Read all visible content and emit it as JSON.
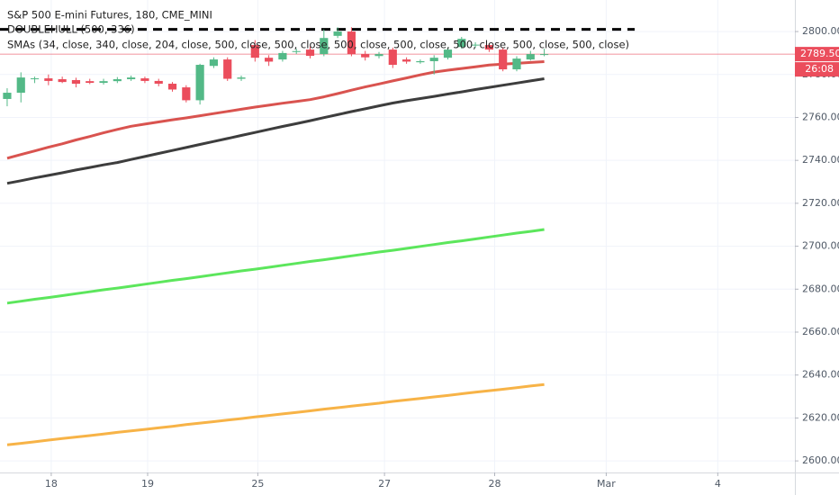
{
  "chart_data": {
    "type": "candlestick",
    "title": "S&P 500 E-mini Futures, 180, CME_MINI",
    "indicator_labels": [
      "DOUBLEHULL (500, 336)",
      "SMAs (34, close, 340, close, 204, close, 500, close, 500, close, 500, close, 500, close, 500, close, 500, close, 500, close)"
    ],
    "open": [
      2768.6,
      2771.5,
      2777.8,
      2778.2,
      2777.8,
      2777.4,
      2776.9,
      2776.1,
      2776.9,
      2777.8,
      2778.2,
      2777.0,
      2775.7,
      2774.0,
      2768.0,
      2784.0,
      2787.0,
      2778.0,
      2793.7,
      2787.8,
      2787.0,
      2790.6,
      2791.6,
      2789.5,
      2798.0,
      2800.0,
      2789.5,
      2788.6,
      2791.6,
      2787.0,
      2785.7,
      2786.2,
      2787.8,
      2792.8,
      2793.5,
      2793.7,
      2791.6,
      2782.4,
      2787.0,
      2789.4
    ],
    "high": [
      2773.6,
      2781.0,
      2779.0,
      2780.0,
      2779.0,
      2778.5,
      2778.0,
      2778.0,
      2778.8,
      2779.5,
      2779.0,
      2778.0,
      2776.5,
      2775.0,
      2785.0,
      2788.0,
      2788.0,
      2779.5,
      2796.0,
      2789.0,
      2791.0,
      2792.0,
      2793.0,
      2801.0,
      2802.0,
      2802.0,
      2791.0,
      2790.5,
      2792.5,
      2788.0,
      2787.0,
      2789.0,
      2792.5,
      2797.5,
      2795.0,
      2794.5,
      2792.5,
      2788.5,
      2791.0,
      2792.0
    ],
    "low": [
      2765.2,
      2767.0,
      2776.0,
      2775.0,
      2776.0,
      2774.0,
      2775.5,
      2775.3,
      2776.0,
      2777.0,
      2776.0,
      2774.5,
      2772.0,
      2767.0,
      2766.0,
      2783.0,
      2777.0,
      2777.0,
      2786.0,
      2784.0,
      2786.0,
      2789.5,
      2787.5,
      2788.5,
      2797.0,
      2788.5,
      2786.5,
      2787.5,
      2783.0,
      2785.0,
      2785.0,
      2780.0,
      2787.0,
      2792.0,
      2792.5,
      2790.5,
      2781.5,
      2781.5,
      2786.5,
      2788.5
    ],
    "close": [
      2771.5,
      2778.6,
      2778.2,
      2777.0,
      2776.5,
      2775.7,
      2776.1,
      2776.9,
      2777.8,
      2778.6,
      2777.0,
      2775.7,
      2773.0,
      2768.0,
      2784.5,
      2787.0,
      2778.0,
      2778.6,
      2787.8,
      2786.0,
      2790.0,
      2790.9,
      2788.7,
      2797.0,
      2800.0,
      2789.5,
      2788.0,
      2789.5,
      2784.5,
      2786.0,
      2786.2,
      2787.8,
      2791.6,
      2796.6,
      2793.9,
      2791.6,
      2782.4,
      2787.4,
      2789.5,
      2789.5
    ],
    "up_color": "#53b987",
    "down_color": "#eb4d5c",
    "lines": [
      {
        "color": "#d9534f",
        "values": [
          2741.0,
          2742.7,
          2744.4,
          2746.1,
          2747.7,
          2749.5,
          2751.1,
          2752.8,
          2754.4,
          2755.9,
          2756.9,
          2757.9,
          2758.9,
          2759.8,
          2760.8,
          2761.8,
          2762.8,
          2763.8,
          2764.8,
          2765.7,
          2766.6,
          2767.4,
          2768.3,
          2769.6,
          2771.1,
          2772.7,
          2774.2,
          2775.6,
          2777.0,
          2778.4,
          2779.8,
          2781.1,
          2782.0,
          2782.8,
          2783.6,
          2784.4,
          2784.8,
          2785.2,
          2785.6,
          2786.0
        ]
      },
      {
        "color": "#3d3d3d",
        "values": [
          2729.3,
          2730.5,
          2731.8,
          2733.0,
          2734.2,
          2735.5,
          2736.7,
          2737.9,
          2739.0,
          2740.4,
          2741.8,
          2743.2,
          2744.6,
          2746.0,
          2747.4,
          2748.8,
          2750.2,
          2751.6,
          2753.0,
          2754.4,
          2755.8,
          2757.1,
          2758.5,
          2759.9,
          2761.3,
          2762.7,
          2764.0,
          2765.4,
          2766.7,
          2767.8,
          2768.8,
          2769.8,
          2770.9,
          2771.9,
          2773.0,
          2774.0,
          2775.0,
          2776.0,
          2777.0,
          2778.0
        ]
      },
      {
        "color": "#5ce65c",
        "values": [
          2673.5,
          2674.4,
          2675.3,
          2676.1,
          2677.0,
          2677.9,
          2678.8,
          2679.7,
          2680.5,
          2681.4,
          2682.3,
          2683.2,
          2684.1,
          2684.9,
          2685.8,
          2686.7,
          2687.6,
          2688.5,
          2689.3,
          2690.2,
          2691.1,
          2692.0,
          2692.9,
          2693.7,
          2694.6,
          2695.5,
          2696.4,
          2697.3,
          2698.1,
          2699.0,
          2699.9,
          2700.8,
          2701.7,
          2702.5,
          2703.4,
          2704.3,
          2705.2,
          2706.1,
          2706.9,
          2707.8
        ]
      },
      {
        "color": "#f7b347",
        "values": [
          2607.5,
          2608.2,
          2608.9,
          2609.7,
          2610.4,
          2611.1,
          2611.8,
          2612.5,
          2613.3,
          2614.0,
          2614.7,
          2615.4,
          2616.1,
          2616.9,
          2617.6,
          2618.3,
          2619.0,
          2619.7,
          2620.5,
          2621.2,
          2621.9,
          2622.6,
          2623.3,
          2624.1,
          2624.8,
          2625.5,
          2626.2,
          2626.9,
          2627.7,
          2628.4,
          2629.1,
          2629.8,
          2630.5,
          2631.3,
          2632.0,
          2632.7,
          2633.4,
          2634.1,
          2634.9,
          2635.6
        ]
      }
    ],
    "dashed_level": {
      "value": 2801,
      "color": "#000000"
    },
    "last_price": 2789.5,
    "last_price_label": "2789.50",
    "countdown": "26:08",
    "xlim": [
      -0.52,
      57.2
    ],
    "xticks": [
      {
        "value": 3.2,
        "label": "18"
      },
      {
        "value": 10.2,
        "label": "19"
      },
      {
        "value": 18.2,
        "label": "25"
      },
      {
        "value": 27.4,
        "label": "27"
      },
      {
        "value": 35.4,
        "label": "28"
      },
      {
        "value": 43.5,
        "label": "Mar"
      },
      {
        "value": 51.6,
        "label": "4"
      }
    ],
    "ylim": [
      2594.6,
      2814.7
    ],
    "yticks": [
      {
        "value": 2600,
        "label": "2600.00"
      },
      {
        "value": 2620,
        "label": "2620.00"
      },
      {
        "value": 2640,
        "label": "2640.00"
      },
      {
        "value": 2660,
        "label": "2660.00"
      },
      {
        "value": 2680,
        "label": "2680.00"
      },
      {
        "value": 2700,
        "label": "2700.00"
      },
      {
        "value": 2720,
        "label": "2720.00"
      },
      {
        "value": 2740,
        "label": "2740.00"
      },
      {
        "value": 2760,
        "label": "2760.00"
      },
      {
        "value": 2780,
        "label": "2780.00"
      },
      {
        "value": 2800,
        "label": "2800.00"
      }
    ],
    "grid": true
  }
}
